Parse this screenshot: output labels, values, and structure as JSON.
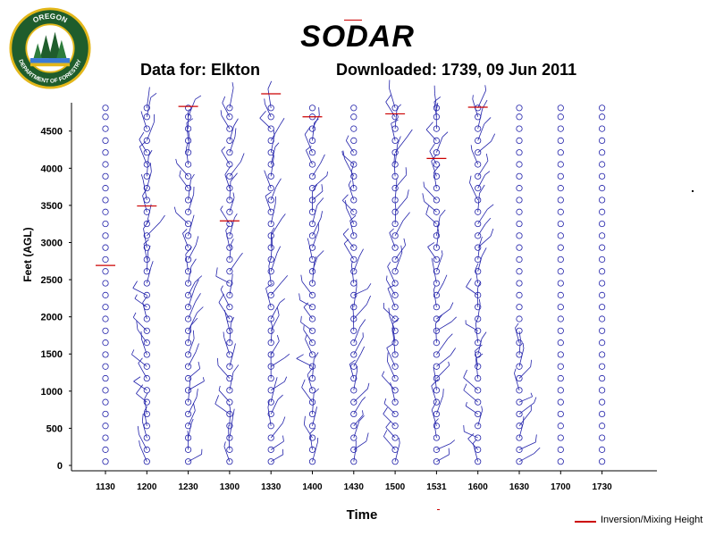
{
  "logo": {
    "top_text": "OREGON",
    "bottom_text": "DEPARTMENT OF FORESTRY",
    "colors": {
      "ring": "#1f5d2c",
      "gold": "#e3b71a"
    }
  },
  "header": {
    "title": "SODAR",
    "station": "Data for: Elkton",
    "downloaded": "Downloaded: 1739, 09 Jun 2011"
  },
  "legend": {
    "label": "Inversion/Mixing Height",
    "color": "#cc0000"
  },
  "chart_data": {
    "type": "scatter",
    "title": "SODAR",
    "xlabel": "Time",
    "ylabel": "Feet (AGL)",
    "ylim": [
      0,
      4900
    ],
    "y_ticks": [
      "0",
      "500",
      "1000",
      "1500",
      "2000",
      "2500",
      "3000",
      "3500",
      "4000",
      "4500"
    ],
    "categories": [
      "1130",
      "1200",
      "1230",
      "1300",
      "1330",
      "1400",
      "1430",
      "1500",
      "1531",
      "1600",
      "1630",
      "1700",
      "1730"
    ],
    "grid": false,
    "legend_position": "bottom-right",
    "colors": {
      "wind_barbs": "#2222aa",
      "inversion": "#cc0000"
    },
    "wind_profile_heights": [
      100,
      260,
      420,
      580,
      740,
      900,
      1060,
      1220,
      1380,
      1540,
      1700,
      1860,
      2020,
      2180,
      2340,
      2500,
      2660,
      2820,
      2980,
      3140,
      3300,
      3460,
      3620,
      3780,
      3940,
      4100,
      4260,
      4420,
      4580,
      4740,
      4860
    ],
    "wind_barb_max_height": [
      0,
      4860,
      4740,
      4860,
      4900,
      4580,
      4260,
      4860,
      4860,
      4900,
      1800,
      0,
      0
    ],
    "inversion_height": [
      {
        "time": "1130",
        "height": 2740
      },
      {
        "time": "1200",
        "height": 3540
      },
      {
        "time": "1230",
        "height": 4880
      },
      {
        "time": "1300",
        "height": 3340
      },
      {
        "time": "1330",
        "height": 5050
      },
      {
        "time": "1400",
        "height": 4740
      },
      {
        "time": "1500",
        "height": 4780
      },
      {
        "time": "1531",
        "height": 4180
      },
      {
        "time": "1600",
        "height": 4870
      }
    ]
  }
}
